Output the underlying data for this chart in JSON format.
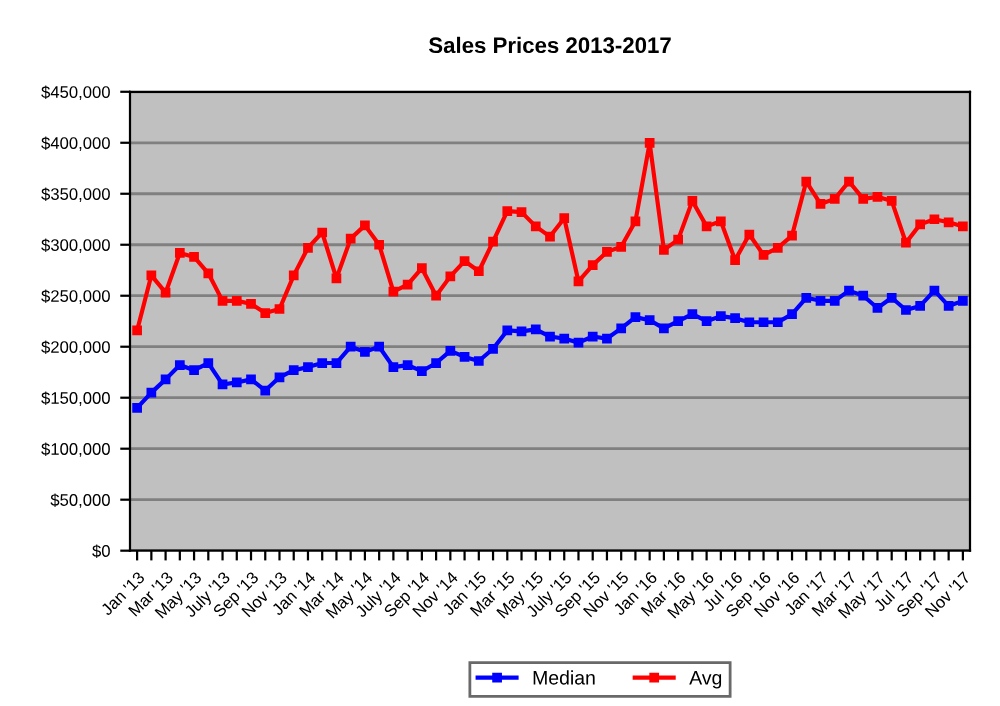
{
  "chart_data": {
    "type": "line",
    "title": "Sales Prices 2013-2017",
    "categories": [
      "Jan '13",
      null,
      "Mar '13",
      null,
      "May '13",
      null,
      "July '13",
      null,
      "Sep '13",
      null,
      "Nov '13",
      null,
      "Jan '14",
      null,
      "Mar '14",
      null,
      "May '14",
      null,
      "July '14",
      null,
      "Sep '14",
      null,
      "Nov '14",
      null,
      "Jan '15",
      null,
      "Mar '15",
      null,
      "May '15",
      null,
      "July '15",
      null,
      "Sep '15",
      null,
      "Nov '15",
      null,
      "Jan '16",
      null,
      "Mar '16",
      null,
      "May '16",
      null,
      "Jul '16",
      null,
      "Sep '16",
      null,
      "Nov '16",
      null,
      "Jan '17",
      null,
      "Mar '17",
      null,
      "May '17",
      null,
      "Jul '17",
      null,
      "Sep '17",
      null,
      "Nov '17"
    ],
    "series": [
      {
        "name": "Median",
        "color": "#0000ff",
        "values": [
          140000,
          155000,
          168000,
          182000,
          177000,
          184000,
          163000,
          165000,
          168000,
          157000,
          170000,
          177000,
          180000,
          184000,
          184000,
          200000,
          195000,
          200000,
          180000,
          182000,
          176000,
          184000,
          196000,
          190000,
          186000,
          198000,
          216000,
          215000,
          217000,
          210000,
          208000,
          204000,
          210000,
          208000,
          218000,
          229000,
          226000,
          218000,
          225000,
          232000,
          225000,
          230000,
          228000,
          224000,
          224000,
          224000,
          232000,
          248000,
          245000,
          245000,
          255000,
          250000,
          238000,
          248000,
          236000,
          240000,
          255000,
          240000,
          245000
        ]
      },
      {
        "name": "Avg",
        "color": "#ff0000",
        "values": [
          216000,
          270000,
          253000,
          292000,
          288000,
          272000,
          245000,
          245000,
          242000,
          233000,
          237000,
          270000,
          297000,
          312000,
          267000,
          306000,
          319000,
          300000,
          254000,
          261000,
          277000,
          250000,
          269000,
          284000,
          274000,
          303000,
          333000,
          332000,
          318000,
          308000,
          326000,
          264000,
          280000,
          293000,
          298000,
          323000,
          400000,
          295000,
          305000,
          343000,
          318000,
          323000,
          285000,
          310000,
          290000,
          297000,
          309000,
          362000,
          340000,
          345000,
          362000,
          345000,
          347000,
          343000,
          302000,
          320000,
          325000,
          322000,
          318000
        ]
      }
    ],
    "ylim": [
      0,
      450000
    ],
    "yticks": [
      {
        "value": 0,
        "label": "$0"
      },
      {
        "value": 50000,
        "label": "$50,000"
      },
      {
        "value": 100000,
        "label": "$100,000"
      },
      {
        "value": 150000,
        "label": "$150,000"
      },
      {
        "value": 200000,
        "label": "$200,000"
      },
      {
        "value": 250000,
        "label": "$250,000"
      },
      {
        "value": 300000,
        "label": "$300,000"
      },
      {
        "value": 350000,
        "label": "$350,000"
      },
      {
        "value": 400000,
        "label": "$400,000"
      },
      {
        "value": 450000,
        "label": "$450,000"
      }
    ],
    "grid": "y",
    "legend": "bottom",
    "marker": "square",
    "line_style": "solid"
  }
}
